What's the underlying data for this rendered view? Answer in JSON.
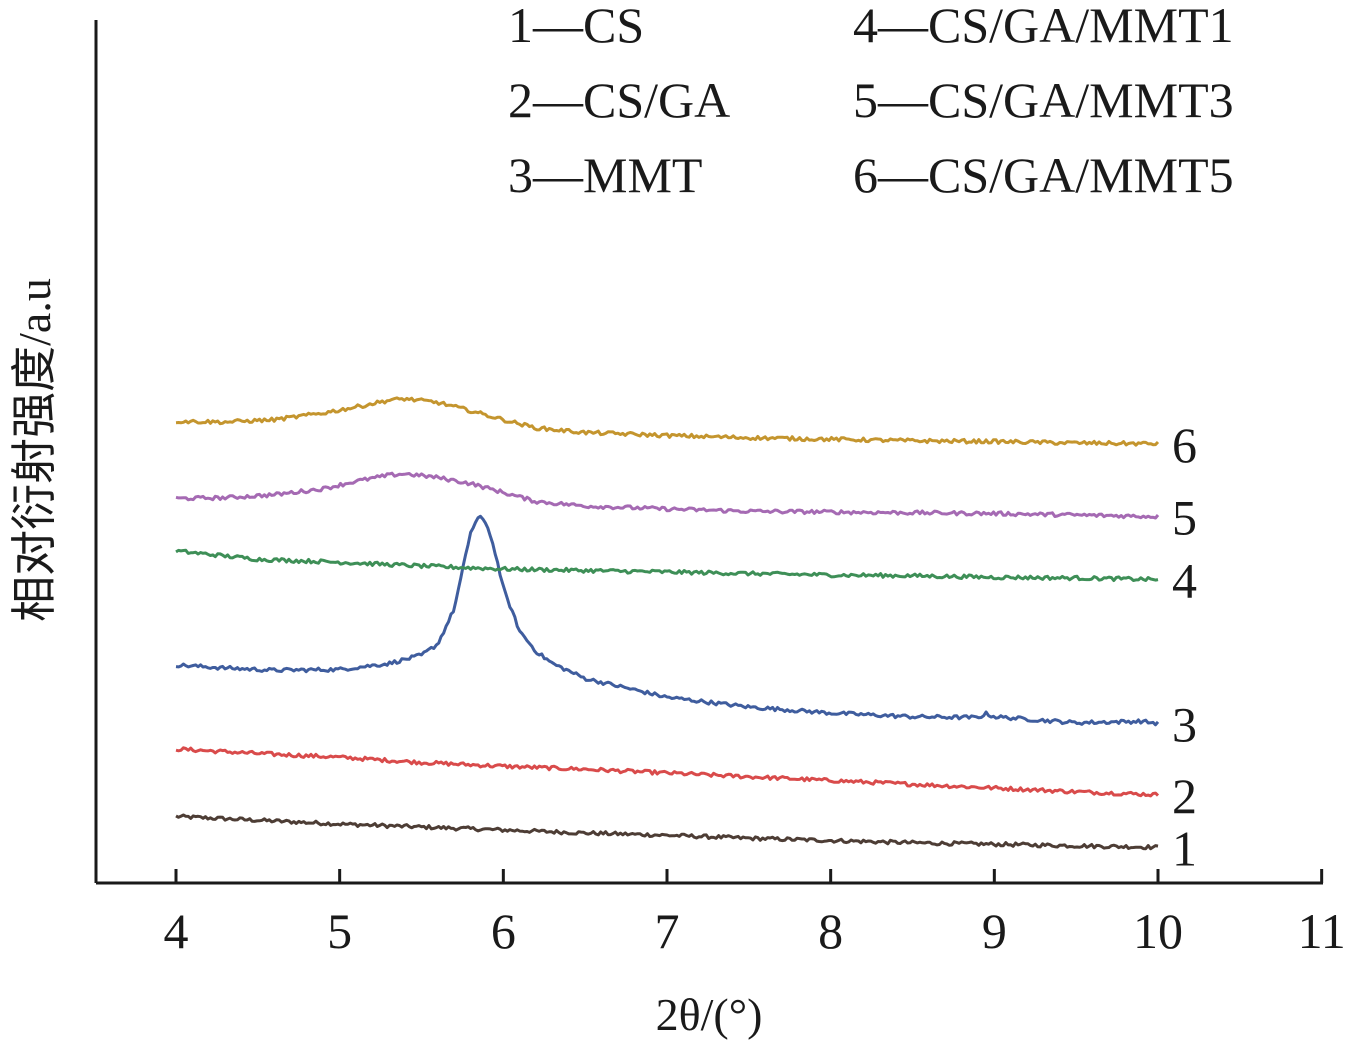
{
  "chart_data": {
    "type": "line",
    "xlabel": "2θ/(°)",
    "ylabel": "相对衍射强度/a.u",
    "xlim": [
      3.5,
      11
    ],
    "x_ticks": [
      "4",
      "5",
      "6",
      "7",
      "8",
      "9",
      "10",
      "11"
    ],
    "y_ticks": [],
    "grid": false,
    "legend_position": "top",
    "legend": [
      {
        "text": "1—CS"
      },
      {
        "text": "2—CS/GA"
      },
      {
        "text": "3—MMT"
      },
      {
        "text": "4—CS/GA/MMT1"
      },
      {
        "text": "5—CS/GA/MMT3"
      },
      {
        "text": "6—CS/GA/MMT5"
      }
    ],
    "series": [
      {
        "label": "1",
        "color": "#4d3d35",
        "points": [
          [
            4.0,
            1.58
          ],
          [
            4.5,
            1.53
          ],
          [
            5.0,
            1.48
          ],
          [
            5.5,
            1.44
          ],
          [
            6.0,
            1.4
          ],
          [
            6.5,
            1.36
          ],
          [
            7.0,
            1.33
          ],
          [
            7.5,
            1.29
          ],
          [
            8.0,
            1.26
          ],
          [
            8.5,
            1.23
          ],
          [
            9.0,
            1.21
          ],
          [
            9.5,
            1.19
          ],
          [
            10.0,
            1.17
          ]
        ]
      },
      {
        "label": "2",
        "color": "#d94b4b",
        "points": [
          [
            4.0,
            2.48
          ],
          [
            4.5,
            2.42
          ],
          [
            5.0,
            2.37
          ],
          [
            5.5,
            2.3
          ],
          [
            6.0,
            2.25
          ],
          [
            6.5,
            2.21
          ],
          [
            7.0,
            2.16
          ],
          [
            7.5,
            2.11
          ],
          [
            8.0,
            2.06
          ],
          [
            8.5,
            2.01
          ],
          [
            9.0,
            1.96
          ],
          [
            9.5,
            1.91
          ],
          [
            10.0,
            1.87
          ]
        ]
      },
      {
        "label": "3",
        "color": "#3f5d9e",
        "points": [
          [
            4.0,
            3.6
          ],
          [
            4.3,
            3.56
          ],
          [
            4.6,
            3.53
          ],
          [
            5.0,
            3.54
          ],
          [
            5.3,
            3.62
          ],
          [
            5.5,
            3.73
          ],
          [
            5.6,
            3.88
          ],
          [
            5.7,
            4.35
          ],
          [
            5.75,
            4.85
          ],
          [
            5.8,
            5.37
          ],
          [
            5.85,
            5.58
          ],
          [
            5.9,
            5.48
          ],
          [
            5.95,
            5.1
          ],
          [
            6.0,
            4.62
          ],
          [
            6.1,
            4.05
          ],
          [
            6.2,
            3.78
          ],
          [
            6.3,
            3.62
          ],
          [
            6.5,
            3.42
          ],
          [
            7.0,
            3.17
          ],
          [
            7.5,
            3.04
          ],
          [
            8.0,
            2.96
          ],
          [
            8.5,
            2.91
          ],
          [
            8.9,
            2.9
          ],
          [
            8.95,
            2.95
          ],
          [
            9.0,
            2.91
          ],
          [
            9.5,
            2.83
          ],
          [
            9.9,
            2.85
          ],
          [
            10.0,
            2.82
          ]
        ]
      },
      {
        "label": "4",
        "color": "#3e8f57",
        "points": [
          [
            4.0,
            5.12
          ],
          [
            4.5,
            5.01
          ],
          [
            5.0,
            4.97
          ],
          [
            5.5,
            4.92
          ],
          [
            6.0,
            4.88
          ],
          [
            6.5,
            4.86
          ],
          [
            7.0,
            4.84
          ],
          [
            7.5,
            4.82
          ],
          [
            8.0,
            4.8
          ],
          [
            8.5,
            4.79
          ],
          [
            9.0,
            4.77
          ],
          [
            9.5,
            4.76
          ],
          [
            10.0,
            4.74
          ]
        ]
      },
      {
        "label": "5",
        "color": "#a56ab3",
        "points": [
          [
            4.0,
            5.82
          ],
          [
            4.3,
            5.83
          ],
          [
            4.6,
            5.87
          ],
          [
            4.9,
            5.95
          ],
          [
            5.1,
            6.05
          ],
          [
            5.3,
            6.13
          ],
          [
            5.4,
            6.15
          ],
          [
            5.6,
            6.1
          ],
          [
            5.8,
            6.02
          ],
          [
            6.0,
            5.9
          ],
          [
            6.2,
            5.78
          ],
          [
            6.5,
            5.72
          ],
          [
            7.0,
            5.68
          ],
          [
            7.5,
            5.65
          ],
          [
            8.0,
            5.64
          ],
          [
            8.5,
            5.63
          ],
          [
            9.0,
            5.62
          ],
          [
            9.5,
            5.6
          ],
          [
            10.0,
            5.58
          ]
        ]
      },
      {
        "label": "6",
        "color": "#c4952e",
        "points": [
          [
            4.0,
            6.85
          ],
          [
            4.3,
            6.84
          ],
          [
            4.6,
            6.87
          ],
          [
            4.9,
            6.96
          ],
          [
            5.1,
            7.04
          ],
          [
            5.3,
            7.13
          ],
          [
            5.4,
            7.15
          ],
          [
            5.6,
            7.1
          ],
          [
            5.8,
            6.99
          ],
          [
            6.0,
            6.87
          ],
          [
            6.2,
            6.76
          ],
          [
            6.5,
            6.7
          ],
          [
            7.0,
            6.66
          ],
          [
            7.5,
            6.63
          ],
          [
            8.0,
            6.61
          ],
          [
            8.5,
            6.59
          ],
          [
            9.0,
            6.58
          ],
          [
            9.5,
            6.56
          ],
          [
            10.0,
            6.55
          ]
        ]
      }
    ],
    "curve_labels": [
      "1",
      "2",
      "3",
      "4",
      "5",
      "6"
    ]
  }
}
